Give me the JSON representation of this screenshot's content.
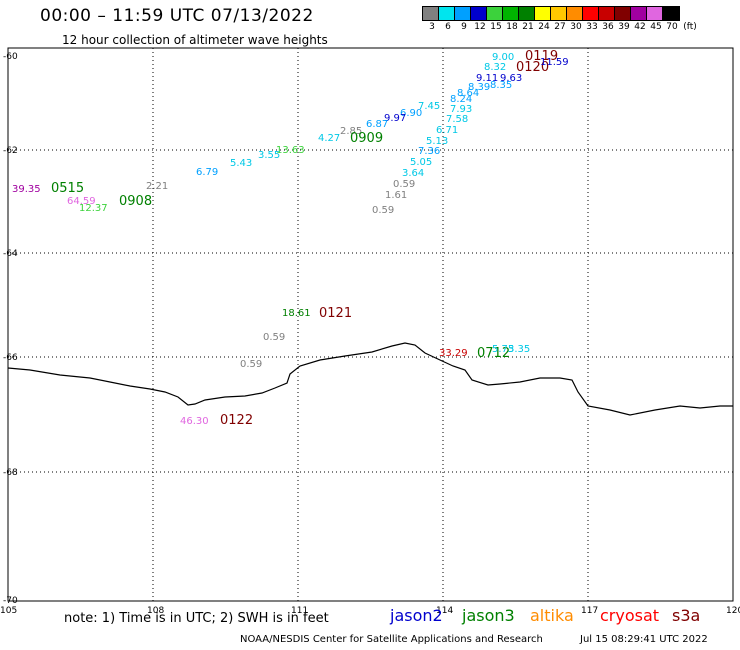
{
  "header": {
    "title": "00:00 – 11:59 UTC 07/13/2022",
    "subtitle": "12 hour collection of altimeter wave heights"
  },
  "legend": {
    "unit_label": "(ft)",
    "bins": [
      {
        "label": "3",
        "color": "#808080"
      },
      {
        "label": "6",
        "color": "#00e5ee"
      },
      {
        "label": "9",
        "color": "#00a0ff"
      },
      {
        "label": "12",
        "color": "#0000cd"
      },
      {
        "label": "15",
        "color": "#3cd23c"
      },
      {
        "label": "18",
        "color": "#00b400"
      },
      {
        "label": "21",
        "color": "#008000"
      },
      {
        "label": "24",
        "color": "#ffff00"
      },
      {
        "label": "27",
        "color": "#ffc800"
      },
      {
        "label": "30",
        "color": "#ff8c00"
      },
      {
        "label": "33",
        "color": "#ff0000"
      },
      {
        "label": "36",
        "color": "#c80000"
      },
      {
        "label": "39",
        "color": "#800000"
      },
      {
        "label": "42",
        "color": "#a000a0"
      },
      {
        "label": "45",
        "color": "#e066e0"
      },
      {
        "label": "70",
        "color": "#000000"
      }
    ]
  },
  "axes": {
    "lon_ticks": [
      "105",
      "108",
      "111",
      "114",
      "117",
      "120"
    ],
    "lat_ticks": [
      "-60",
      "-62",
      "-64",
      "-66",
      "-68",
      "-70"
    ]
  },
  "observations": [
    {
      "text": "9.00",
      "color": "#00c8e6"
    },
    {
      "text": "0119",
      "color": "#800000"
    },
    {
      "text": "8.32",
      "color": "#00c8e6"
    },
    {
      "text": "0120",
      "color": "#800000"
    },
    {
      "text": "11.59",
      "color": "#0000cd"
    },
    {
      "text": "9.11",
      "color": "#0000cd"
    },
    {
      "text": "9.63",
      "color": "#0000cd"
    },
    {
      "text": "8.35",
      "color": "#00a0ff"
    },
    {
      "text": "8.39",
      "color": "#00a0ff"
    },
    {
      "text": "8.64",
      "color": "#00a0ff"
    },
    {
      "text": "8.24",
      "color": "#00a0ff"
    },
    {
      "text": "7.45",
      "color": "#00c8e6"
    },
    {
      "text": "7.93",
      "color": "#00c8e6"
    },
    {
      "text": "7.58",
      "color": "#00c8e6"
    },
    {
      "text": "6.90",
      "color": "#00a0ff"
    },
    {
      "text": "9.97",
      "color": "#0000cd"
    },
    {
      "text": "6.87",
      "color": "#00a0ff"
    },
    {
      "text": "6.71",
      "color": "#00c8e6"
    },
    {
      "text": "5.13",
      "color": "#00c8e6"
    },
    {
      "text": "2.85",
      "color": "#808080"
    },
    {
      "text": "4.27",
      "color": "#00c8e6"
    },
    {
      "text": "0909",
      "color": "#008000"
    },
    {
      "text": "13.63",
      "color": "#3cd23c"
    },
    {
      "text": "3.55",
      "color": "#00c8e6"
    },
    {
      "text": "7.36",
      "color": "#00a0ff"
    },
    {
      "text": "5.43",
      "color": "#00c8e6"
    },
    {
      "text": "5.05",
      "color": "#00c8e6"
    },
    {
      "text": "6.79",
      "color": "#00a0ff"
    },
    {
      "text": "3.64",
      "color": "#00c8e6"
    },
    {
      "text": "0.59",
      "color": "#808080"
    },
    {
      "text": "2.21",
      "color": "#808080"
    },
    {
      "text": "39.35",
      "color": "#a000a0"
    },
    {
      "text": "0515",
      "color": "#008000"
    },
    {
      "text": "1.61",
      "color": "#808080"
    },
    {
      "text": "64.59",
      "color": "#e066e0"
    },
    {
      "text": "0908",
      "color": "#008000"
    },
    {
      "text": "12.37",
      "color": "#3cd23c"
    },
    {
      "text": "0.59",
      "color": "#808080"
    },
    {
      "text": "18.61",
      "color": "#008000"
    },
    {
      "text": "0121",
      "color": "#800000"
    },
    {
      "text": "0.59",
      "color": "#808080"
    },
    {
      "text": "33.29",
      "color": "#c80000"
    },
    {
      "text": "0712",
      "color": "#008000"
    },
    {
      "text": "5.75",
      "color": "#00c8e6"
    },
    {
      "text": "3.35",
      "color": "#00c8e6"
    },
    {
      "text": "0.59",
      "color": "#808080"
    },
    {
      "text": "46.30",
      "color": "#e066e0"
    },
    {
      "text": "0122",
      "color": "#800000"
    }
  ],
  "footer": {
    "note": "note: 1) Time is in UTC; 2) SWH is in feet",
    "satellites": [
      {
        "name": "jason2",
        "color": "#0000cd"
      },
      {
        "name": "jason3",
        "color": "#008000"
      },
      {
        "name": "altika",
        "color": "#ff8c00"
      },
      {
        "name": "cryosat",
        "color": "#ff0000"
      },
      {
        "name": "s3a",
        "color": "#800000"
      }
    ],
    "credit": "NOAA/NESDIS Center for Satellite Applications and Research",
    "timestamp": "Jul 15 08:29:41 UTC 2022"
  }
}
